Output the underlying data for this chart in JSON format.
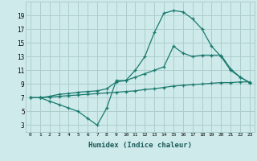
{
  "xlabel": "Humidex (Indice chaleur)",
  "bg_color": "#ceeaea",
  "grid_color": "#aecece",
  "line_color": "#1a7a6e",
  "xlim": [
    -0.5,
    23.5
  ],
  "ylim": [
    2,
    21
  ],
  "xticks": [
    0,
    1,
    2,
    3,
    4,
    5,
    6,
    7,
    8,
    9,
    10,
    11,
    12,
    13,
    14,
    15,
    16,
    17,
    18,
    19,
    20,
    21,
    22,
    23
  ],
  "yticks": [
    3,
    5,
    7,
    9,
    11,
    13,
    15,
    17,
    19
  ],
  "series1_x": [
    0,
    1,
    2,
    3,
    4,
    5,
    6,
    7,
    8,
    9,
    10,
    11,
    12,
    13,
    14,
    15,
    16,
    17,
    18,
    19,
    20,
    21,
    22,
    23
  ],
  "series1_y": [
    7,
    7,
    6.5,
    6,
    5.5,
    5,
    4,
    3,
    5.5,
    9.5,
    9.5,
    11,
    13,
    16.5,
    19.3,
    19.7,
    19.5,
    18.5,
    17,
    14.5,
    13,
    11,
    10,
    9.2
  ],
  "series2_x": [
    0,
    1,
    2,
    3,
    4,
    5,
    6,
    7,
    8,
    9,
    10,
    11,
    12,
    13,
    14,
    15,
    16,
    17,
    18,
    19,
    20,
    21,
    22,
    23
  ],
  "series2_y": [
    7,
    7,
    7.2,
    7.5,
    7.6,
    7.8,
    7.9,
    8.0,
    8.3,
    9.3,
    9.5,
    10.0,
    10.5,
    11.0,
    11.5,
    14.5,
    13.5,
    13.0,
    13.2,
    13.2,
    13.2,
    11.2,
    10.0,
    9.2
  ],
  "series3_x": [
    0,
    1,
    2,
    3,
    4,
    5,
    6,
    7,
    8,
    9,
    10,
    11,
    12,
    13,
    14,
    15,
    16,
    17,
    18,
    19,
    20,
    21,
    22,
    23
  ],
  "series3_y": [
    7,
    7,
    7.1,
    7.2,
    7.3,
    7.4,
    7.5,
    7.6,
    7.7,
    7.8,
    7.9,
    8.0,
    8.2,
    8.3,
    8.5,
    8.7,
    8.8,
    8.9,
    9.0,
    9.1,
    9.2,
    9.2,
    9.3,
    9.3
  ]
}
